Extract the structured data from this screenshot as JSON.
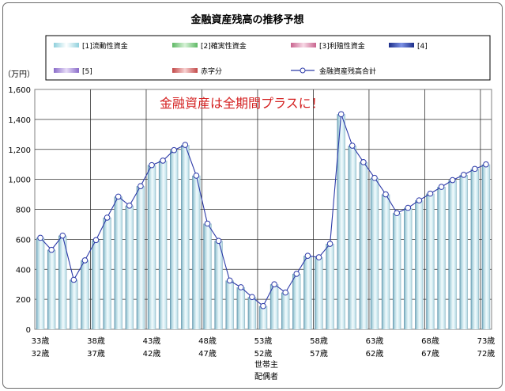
{
  "chart_data": {
    "type": "bar",
    "title": "金融資産残高の推移予想",
    "unit_label": "（万円）",
    "annotation": "金融資産は全期間プラスに！",
    "legend": [
      {
        "label": "[1]流動性資金",
        "kind": "bar",
        "color": "#c9e8ee"
      },
      {
        "label": "[2]確実性資金",
        "kind": "bar",
        "color": "#97d39a"
      },
      {
        "label": "[3]利殖性資金",
        "kind": "bar",
        "color": "#e7a6c4"
      },
      {
        "label": "[4]",
        "kind": "bar",
        "color": "#3e55b8"
      },
      {
        "label": "[5]",
        "kind": "bar",
        "color": "#b79be0"
      },
      {
        "label": "赤字分",
        "kind": "bar",
        "color": "#e07070"
      },
      {
        "label": "金融資産残高合計",
        "kind": "line",
        "color": "#2c3aa8"
      }
    ],
    "legend_position": "top",
    "ylim": [
      0,
      1600
    ],
    "yticks": [
      "0",
      "200",
      "400",
      "600",
      "800",
      "1,000",
      "1,200",
      "1,400",
      "1,600"
    ],
    "grid": true,
    "x_labels_head": [
      "33歳",
      "38歳",
      "43歳",
      "48歳",
      "53歳",
      "58歳",
      "63歳",
      "68歳",
      "73歳"
    ],
    "x_labels_spouse": [
      "32歳",
      "37歳",
      "42歳",
      "47歳",
      "52歳",
      "57歳",
      "62歳",
      "67歳",
      "72歳"
    ],
    "x_row_labels": [
      "世帯主",
      "配偶者"
    ],
    "series": [
      {
        "name": "[1]流動性資金",
        "values": [
          610,
          530,
          625,
          330,
          460,
          595,
          745,
          885,
          825,
          955,
          1095,
          1125,
          1195,
          1230,
          1025,
          705,
          590,
          325,
          280,
          215,
          155,
          300,
          245,
          370,
          490,
          480,
          570,
          1435,
          1225,
          1115,
          1010,
          900,
          775,
          810,
          860,
          905,
          950,
          995,
          1030,
          1070,
          1100
        ]
      },
      {
        "name": "金融資産残高合計",
        "values": [
          610,
          530,
          625,
          330,
          460,
          595,
          745,
          885,
          825,
          955,
          1095,
          1125,
          1195,
          1230,
          1025,
          705,
          590,
          325,
          280,
          215,
          155,
          300,
          245,
          370,
          490,
          480,
          570,
          1435,
          1225,
          1115,
          1010,
          900,
          775,
          810,
          860,
          905,
          950,
          995,
          1030,
          1070,
          1100
        ]
      }
    ]
  }
}
